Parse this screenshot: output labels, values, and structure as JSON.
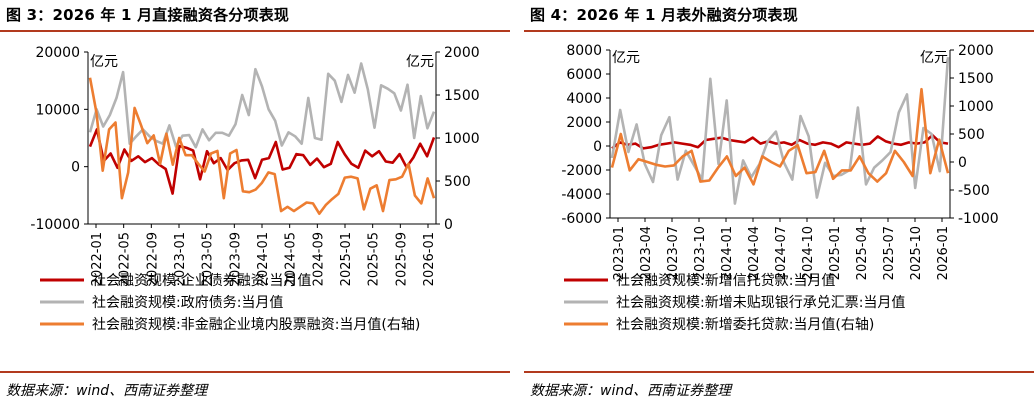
{
  "colors": {
    "red": "#c00000",
    "gray": "#b3b3b3",
    "orange": "#ed7d31",
    "rule": "#b23a1e"
  },
  "source_text": "数据来源：wind、西南证券整理",
  "charts": [
    {
      "title": "图 3：2026 年 1 月直接融资各分项表现",
      "source": "数据来源：wind、西南证券整理",
      "chart_data": {
        "type": "line",
        "y_unit_left": "亿元",
        "y_unit_right": "亿元",
        "ylim_left": [
          -10000,
          20000
        ],
        "ylim_right": [
          0,
          2000
        ],
        "yticks_left": [
          "20000",
          "10000",
          "0",
          "-10000"
        ],
        "yticks_right": [
          "2000",
          "1500",
          "1000",
          "500",
          "0"
        ],
        "x_ticks": [
          "2022-01",
          "2022-05",
          "2022-09",
          "2023-01",
          "2023-05",
          "2023-09",
          "2024-01",
          "2024-05",
          "2024-09",
          "2025-01",
          "2025-05",
          "2025-09",
          "2026-01"
        ],
        "series": [
          {
            "name": "社会融资规模:企业债券融资:当月值",
            "axis": "left",
            "color": "#c00000",
            "values": [
              3500,
              6500,
              1000,
              2300,
              -200,
              3000,
              1000,
              1800,
              800,
              1500,
              400,
              -400,
              -4700,
              3600,
              3300,
              2800,
              -2200,
              2700,
              600,
              1500,
              -600,
              600,
              1100,
              1200,
              -2000,
              1200,
              1500,
              4300,
              -500,
              -200,
              2200,
              2000,
              300,
              1400,
              -100,
              500,
              4300,
              2200,
              500,
              -200,
              2800,
              1800,
              2700,
              900,
              700,
              2200,
              -100,
              1600,
              4000,
              1800,
              5100
            ]
          },
          {
            "name": "社会融资规模:政府债务:当月值",
            "axis": "left",
            "color": "#b3b3b3",
            "values": [
              6000,
              10000,
              7000,
              9000,
              12000,
              16500,
              4000,
              5300,
              6500,
              5300,
              4500,
              4000,
              7200,
              3500,
              5400,
              5500,
              3400,
              6500,
              4600,
              5900,
              5900,
              5400,
              7400,
              12500,
              9000,
              17000,
              14000,
              10000,
              8000,
              3700,
              6000,
              5300,
              4000,
              12000,
              5000,
              4700,
              16200,
              15000,
              11300,
              16000,
              12900,
              18000,
              13500,
              6800,
              14200,
              13600,
              12800,
              9800,
              14300,
              5000,
              12300,
              6700,
              9600
            ]
          },
          {
            "name": "社会融资规模:非金融企业境内股票融资:当月值(右轴)",
            "axis": "right",
            "color": "#ed7d31",
            "values": [
              1700,
              1300,
              620,
              1100,
              1180,
              300,
              600,
              1350,
              1150,
              940,
              1030,
              700,
              1050,
              690,
              1000,
              800,
              800,
              700,
              610,
              820,
              850,
              300,
              820,
              860,
              380,
              370,
              400,
              480,
              600,
              580,
              150,
              200,
              150,
              200,
              250,
              240,
              120,
              220,
              290,
              350,
              540,
              550,
              530,
              170,
              410,
              450,
              150,
              510,
              520,
              550,
              700,
              330,
              240,
              530,
              300
            ]
          }
        ]
      }
    },
    {
      "title": "图 4：2026 年 1 月表外融资分项表现",
      "source": "数据来源：wind、西南证券整理",
      "chart_data": {
        "type": "line",
        "y_unit_left": "亿元",
        "y_unit_right": "亿元",
        "ylim_left": [
          -6000,
          8000
        ],
        "ylim_right": [
          -1000,
          2000
        ],
        "yticks_left": [
          "8000",
          "6000",
          "4000",
          "2000",
          "0",
          "-2000",
          "-4000",
          "-6000"
        ],
        "yticks_right": [
          "2000",
          "1500",
          "1000",
          "500",
          "0",
          "-500",
          "-1000"
        ],
        "x_ticks": [
          "2023-01",
          "2023-04",
          "2023-07",
          "2023-10",
          "2024-01",
          "2024-04",
          "2024-07",
          "2024-10",
          "2025-01",
          "2025-04",
          "2025-07",
          "2025-10",
          "2026-01"
        ],
        "series": [
          {
            "name": "社会融资规模:新增信托贷款:当月值",
            "axis": "left",
            "color": "#c00000",
            "values": [
              -200,
              300,
              100,
              200,
              -200,
              -100,
              100,
              200,
              300,
              200,
              100,
              -100,
              500,
              600,
              700,
              500,
              400,
              300,
              700,
              200,
              400,
              200,
              300,
              100,
              500,
              200,
              100,
              300,
              200,
              -100,
              300,
              200,
              100,
              200,
              800,
              400,
              200,
              100,
              300,
              200,
              300,
              900,
              300,
              200
            ]
          },
          {
            "name": "社会融资规模:新增未贴现银行承兑汇票:当月值",
            "axis": "left",
            "color": "#b3b3b3",
            "values": [
              -1000,
              3000,
              -500,
              1800,
              -1500,
              -3000,
              900,
              2400,
              -2800,
              -400,
              -1600,
              -2800,
              5600,
              -1500,
              3800,
              -4800,
              -1200,
              -2600,
              -1500,
              400,
              1200,
              -1400,
              -2800,
              2500,
              800,
              -4300,
              -1400,
              -2500,
              -2400,
              -2000,
              3200,
              -3200,
              -1800,
              -1200,
              -500,
              2800,
              4300,
              -3500,
              1500,
              1000,
              -2100,
              7400
            ]
          },
          {
            "name": "社会融资规模:新增委托贷款:当月值(右轴)",
            "axis": "right",
            "color": "#ed7d31",
            "values": [
              -100,
              500,
              -150,
              50,
              0,
              -50,
              -80,
              -60,
              100,
              200,
              -350,
              -330,
              -100,
              100,
              -250,
              -100,
              -400,
              100,
              0,
              -80,
              200,
              300,
              -200,
              -180,
              200,
              -300,
              -150,
              -150,
              100,
              -200,
              -350,
              -200,
              200,
              0,
              -250,
              1300,
              -200,
              400,
              -200
            ]
          }
        ]
      }
    }
  ]
}
